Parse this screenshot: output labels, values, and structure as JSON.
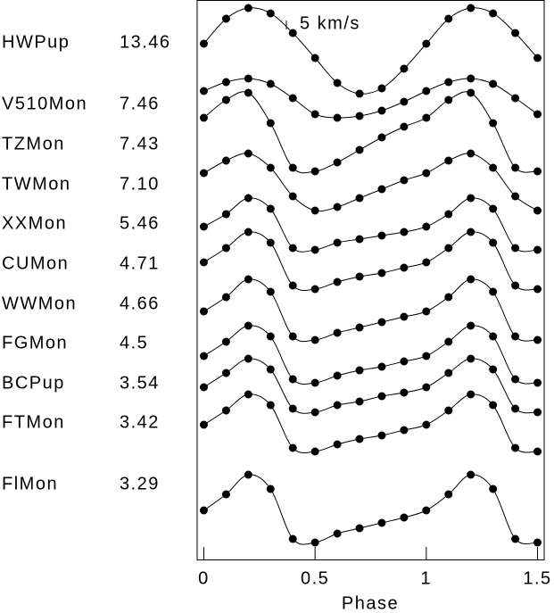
{
  "chart_data": {
    "type": "line",
    "x_label": "Phase",
    "x": [
      0,
      0.1,
      0.2,
      0.3,
      0.4,
      0.5,
      0.6,
      0.7,
      0.8,
      0.9,
      1,
      1.1,
      1.2,
      1.3,
      1.4,
      1.5
    ],
    "xlim": [
      -0.03,
      1.53
    ],
    "xticks": [
      0,
      0.5,
      1,
      1.5
    ],
    "color": "#000000",
    "scale_bar": {
      "value": 5,
      "label": "5 km/s"
    },
    "series": [
      {
        "name": "HWPup",
        "period": 13.46,
        "values": [
          4,
          18,
          24,
          21,
          10,
          -4,
          -18,
          -24,
          -21,
          -10,
          4,
          18,
          24,
          21,
          10,
          -4
        ]
      },
      {
        "name": "V510Mon",
        "period": 7.46,
        "values": [
          4,
          9,
          11,
          8,
          0,
          -9,
          -11,
          -10,
          -7,
          -2,
          4,
          9,
          11,
          8,
          0,
          -9
        ]
      },
      {
        "name": "TZMon",
        "period": 7.43,
        "values": [
          8,
          18,
          22,
          5,
          -20,
          -22,
          -17,
          -10,
          -3,
          3,
          8,
          18,
          22,
          5,
          -20,
          -22
        ]
      },
      {
        "name": "TWMon",
        "period": {
          "value": 7.1,
          "label": "7.10"
        },
        "values": [
          5,
          12,
          16,
          8,
          -8,
          -16,
          -14,
          -9,
          -4,
          1,
          5,
          12,
          16,
          8,
          -8,
          -16
        ]
      },
      {
        "name": "XXMon",
        "period": 5.46,
        "values": [
          -2,
          5,
          14,
          8,
          -14,
          -15,
          -11,
          -9,
          -7,
          -5,
          -2,
          5,
          14,
          8,
          -14,
          -15
        ]
      },
      {
        "name": "CUMon",
        "period": 4.71,
        "values": [
          -2,
          6,
          15,
          9,
          -15,
          -17,
          -13,
          -10,
          -8,
          -5,
          -2,
          6,
          15,
          9,
          -15,
          -17
        ]
      },
      {
        "name": "WWMon",
        "period": 4.66,
        "values": [
          -2,
          6,
          16,
          9,
          -16,
          -18,
          -14,
          -11,
          -8,
          -5,
          -2,
          6,
          16,
          9,
          -16,
          -18
        ]
      },
      {
        "name": "FGMon",
        "period": 4.5,
        "values": [
          -2,
          6,
          15,
          9,
          -15,
          -17,
          -13,
          -10,
          -8,
          -5,
          -2,
          6,
          15,
          9,
          -15,
          -17
        ]
      },
      {
        "name": "BCPup",
        "period": 3.54,
        "values": [
          -2,
          6,
          14,
          8,
          -14,
          -16,
          -12,
          -10,
          -7,
          -5,
          -2,
          6,
          14,
          8,
          -14,
          -16
        ]
      },
      {
        "name": "FTMon",
        "period": 3.42,
        "values": [
          -2,
          6,
          15,
          9,
          -15,
          -17,
          -13,
          -10,
          -8,
          -5,
          -2,
          6,
          15,
          9,
          -15,
          -17
        ]
      },
      {
        "name": "FlMon",
        "period": 3.29,
        "values": [
          -2,
          7,
          18,
          10,
          -18,
          -20,
          -15,
          -12,
          -9,
          -6,
          -2,
          7,
          18,
          10,
          -18,
          -20
        ]
      }
    ]
  }
}
